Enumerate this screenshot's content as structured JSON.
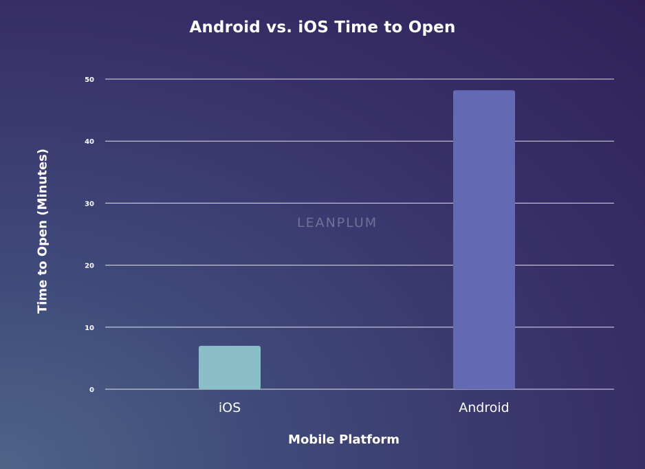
{
  "watermark": "LEANPLUM",
  "chart_data": {
    "type": "bar",
    "title": "Android vs. iOS Time to Open",
    "xlabel": "Mobile Platform",
    "ylabel": "Time to Open (Minutes)",
    "categories": [
      "iOS",
      "Android"
    ],
    "values": [
      7,
      48.2
    ],
    "bar_colors": [
      "#8bbfc8",
      "#6469b3"
    ],
    "yticks": [
      0,
      10,
      20,
      30,
      40,
      50
    ],
    "ylim": [
      0,
      50
    ],
    "grid": true,
    "legend": "none"
  }
}
